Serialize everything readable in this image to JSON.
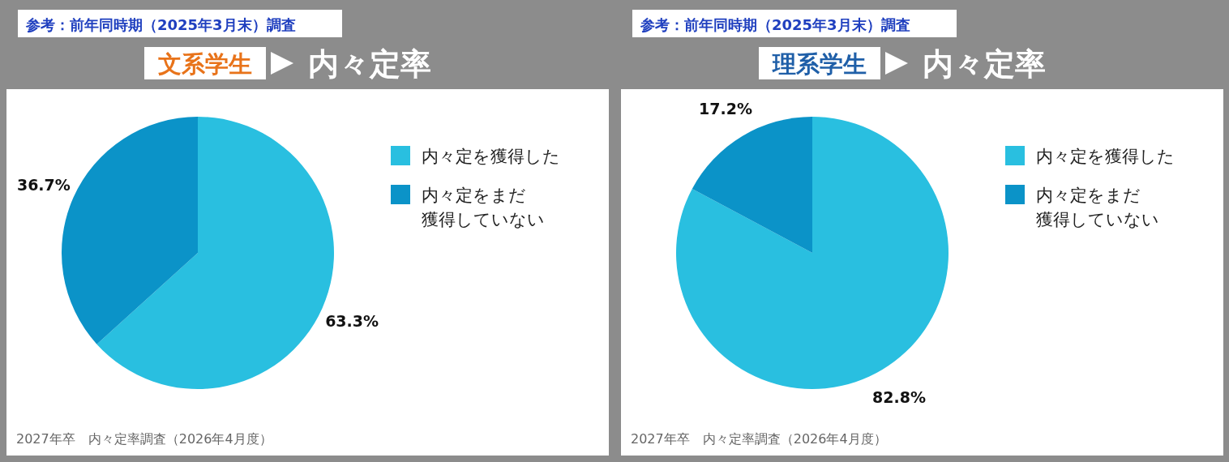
{
  "chart_data": [
    {
      "type": "pie",
      "title": "文系学生",
      "subtitle": "内々定率",
      "categories": [
        "内々定を獲得した",
        "内々定をまだ獲得していない"
      ],
      "values": [
        63.3,
        36.7
      ],
      "colors": [
        "#29bfe0",
        "#0b93c8"
      ],
      "value_labels": [
        "63.3%",
        "36.7%"
      ],
      "legend": "right",
      "annotations": [
        "参考：前年同時期（2025年3月末）調査",
        "2027年卒　内々定率調査（2026年4月度）"
      ]
    },
    {
      "type": "pie",
      "title": "理系学生",
      "subtitle": "内々定率",
      "categories": [
        "内々定を獲得した",
        "内々定をまだ獲得していない"
      ],
      "values": [
        82.8,
        17.2
      ],
      "colors": [
        "#29bfe0",
        "#0b93c8"
      ],
      "value_labels": [
        "82.8%",
        "17.2%"
      ],
      "legend": "right",
      "annotations": [
        "参考：前年同時期（2025年3月末）調査",
        "2027年卒　内々定率調査（2026年4月度）"
      ]
    }
  ]
}
